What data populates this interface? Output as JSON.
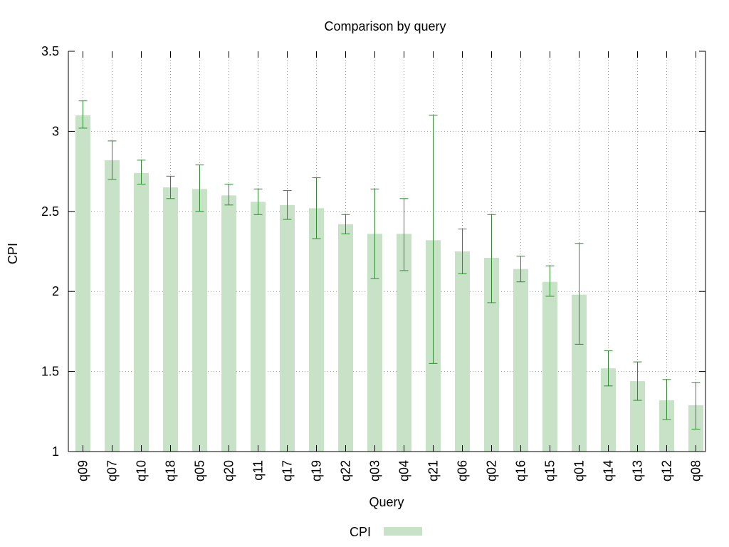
{
  "chart_data": {
    "type": "bar",
    "title": "Comparison by query",
    "xlabel": "Query",
    "ylabel": "CPI",
    "ylim": [
      1,
      3.5
    ],
    "yticks": [
      1,
      1.5,
      2,
      2.5,
      3,
      3.5
    ],
    "ytick_labels": [
      "1",
      "1.5",
      "2",
      "2.5",
      "3",
      "3.5"
    ],
    "grid": true,
    "legend_position": "bottom-center",
    "categories": [
      "q09",
      "q07",
      "q10",
      "q18",
      "q05",
      "q20",
      "q11",
      "q17",
      "q19",
      "q22",
      "q03",
      "q04",
      "q21",
      "q06",
      "q02",
      "q16",
      "q15",
      "q01",
      "q14",
      "q13",
      "q12",
      "q08"
    ],
    "series": [
      {
        "name": "CPI",
        "color": "#c8e2c8",
        "error_color": "#2e8b2e",
        "values": [
          3.1,
          2.82,
          2.74,
          2.65,
          2.64,
          2.6,
          2.56,
          2.54,
          2.52,
          2.42,
          2.36,
          2.36,
          2.32,
          2.25,
          2.21,
          2.14,
          2.06,
          1.98,
          1.52,
          1.44,
          1.32,
          1.29
        ],
        "error_low": [
          3.02,
          2.7,
          2.67,
          2.58,
          2.5,
          2.54,
          2.48,
          2.45,
          2.33,
          2.36,
          2.08,
          2.13,
          1.55,
          2.11,
          1.93,
          2.06,
          1.97,
          1.67,
          1.41,
          1.32,
          1.2,
          1.14
        ],
        "error_high": [
          3.19,
          2.94,
          2.82,
          2.72,
          2.79,
          2.67,
          2.64,
          2.63,
          2.71,
          2.48,
          2.64,
          2.58,
          3.1,
          2.39,
          2.48,
          2.22,
          2.16,
          2.3,
          1.63,
          1.56,
          1.45,
          1.43
        ]
      }
    ]
  }
}
